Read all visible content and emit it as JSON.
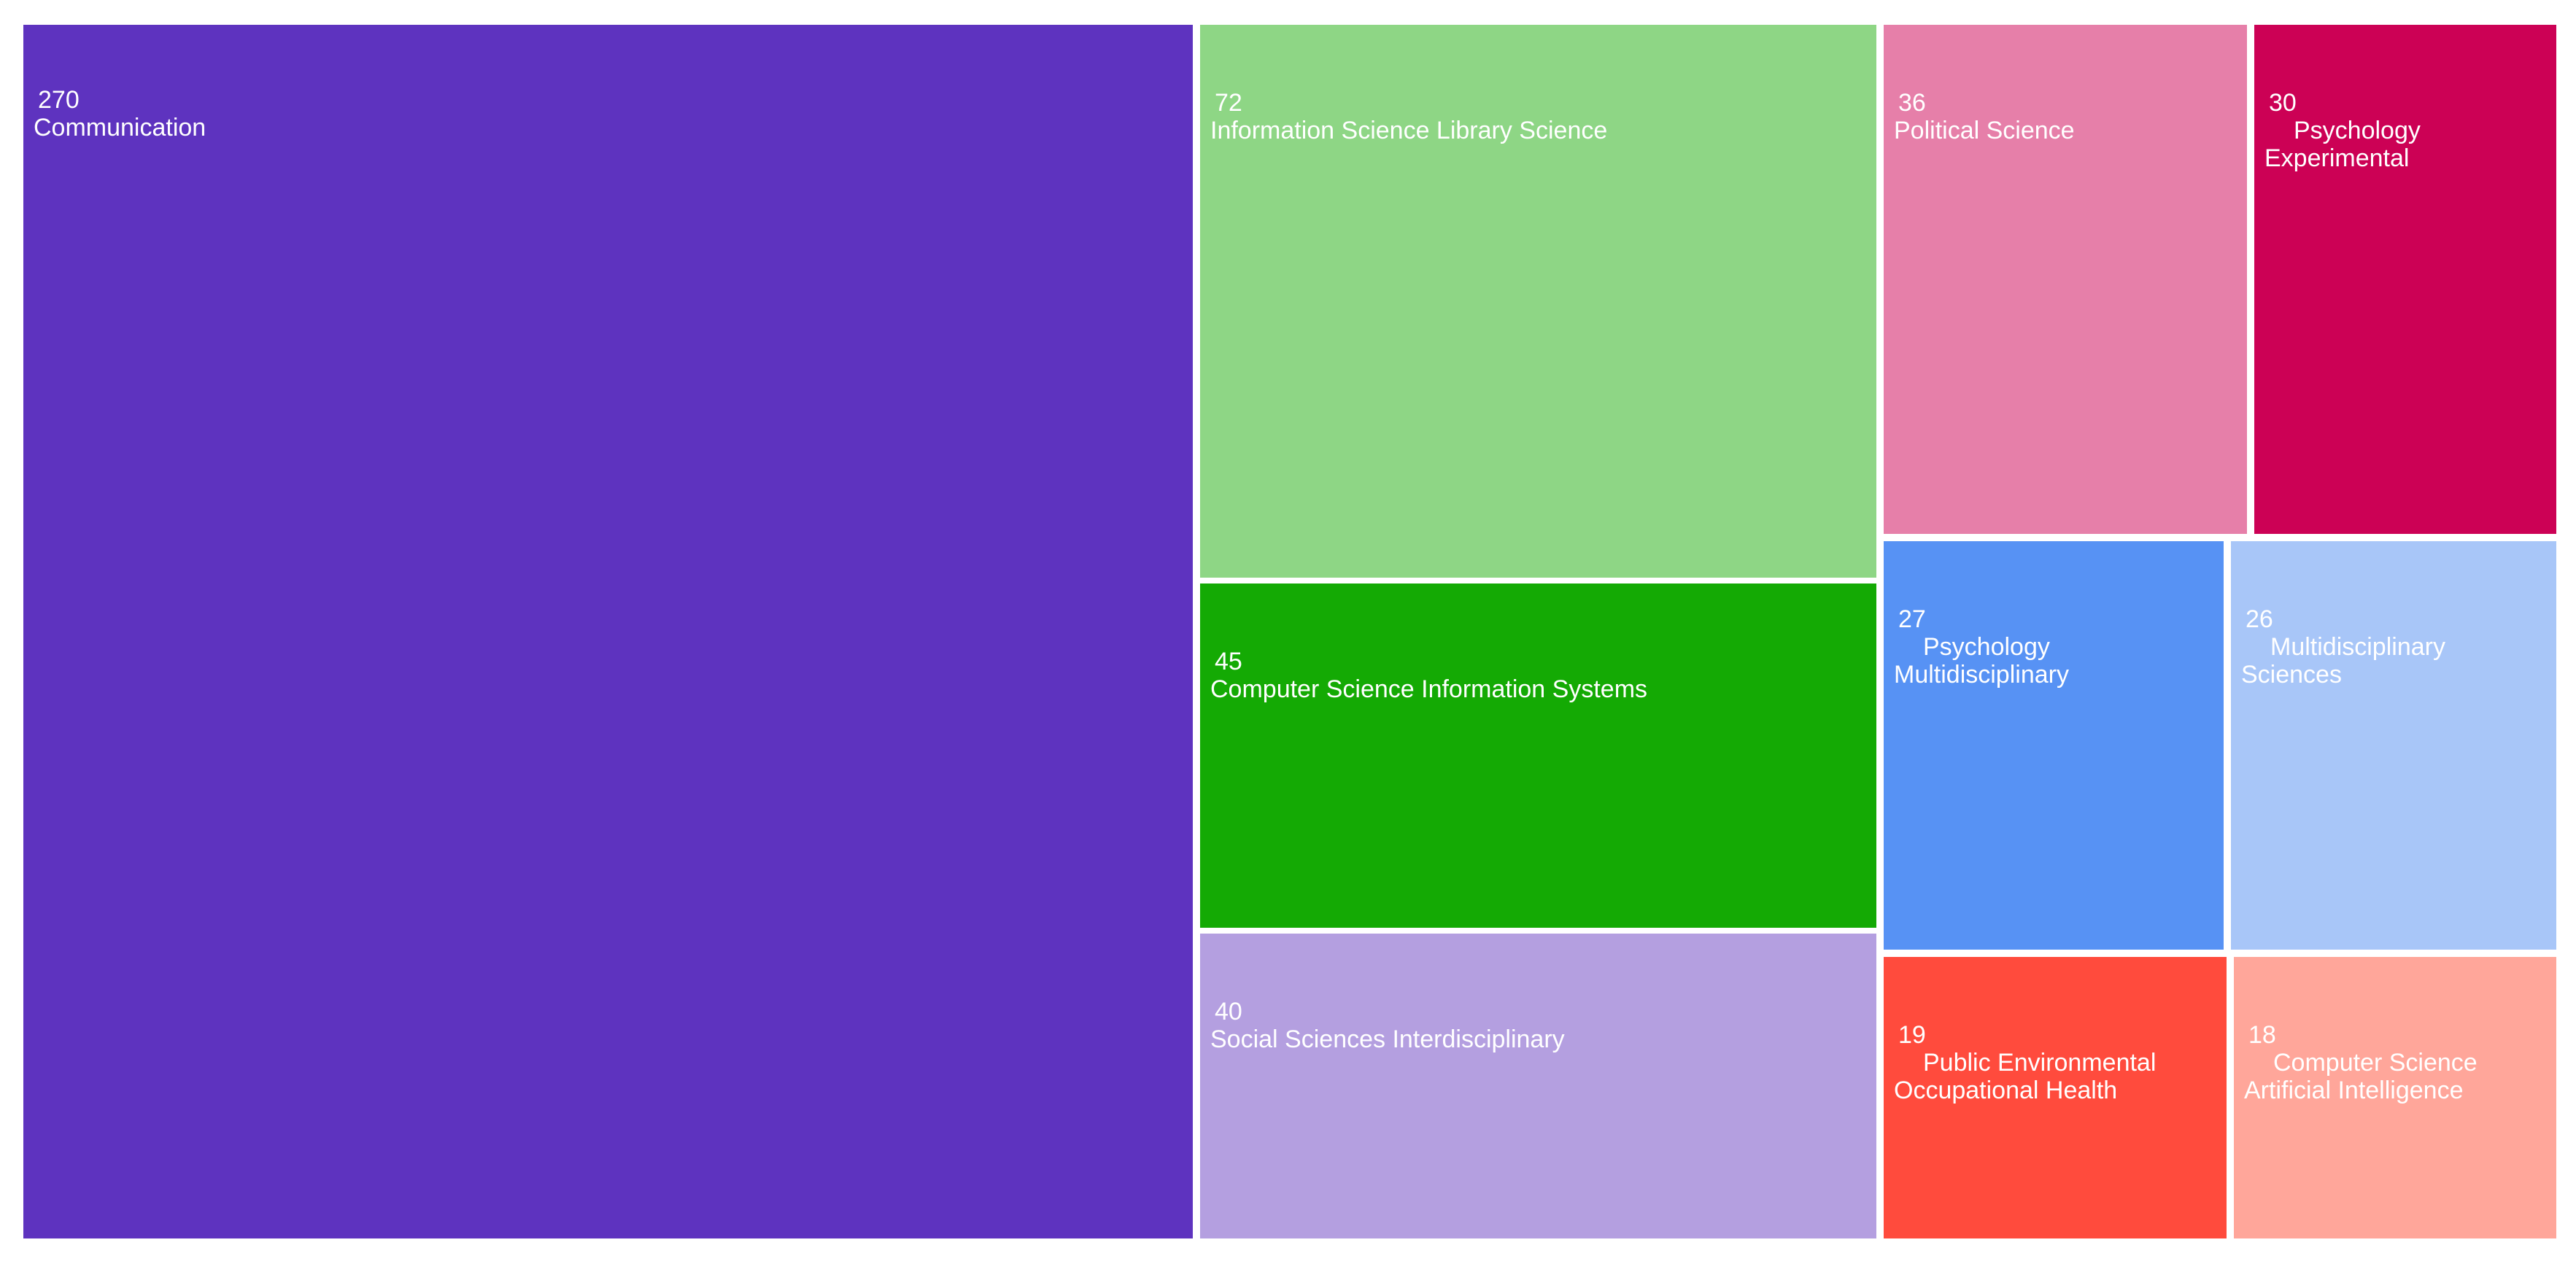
{
  "chart_data": {
    "type": "treemap",
    "title": "",
    "items": [
      {
        "label": "Communication",
        "value": 270,
        "color": "#5e33bf"
      },
      {
        "label": "Information Science Library Science",
        "value": 72,
        "color": "#8ed685"
      },
      {
        "label": "Computer Science Information Systems",
        "value": 45,
        "color": "#14aa04"
      },
      {
        "label": "Social Sciences Interdisciplinary",
        "value": 40,
        "color": "#b49fe0"
      },
      {
        "label": "Political Science",
        "value": 36,
        "color": "#e67fa9"
      },
      {
        "label": "Psychology Experimental",
        "value": 30,
        "color": "#cc0155"
      },
      {
        "label": "Psychology Multidisciplinary",
        "value": 27,
        "color": "#5792f4"
      },
      {
        "label": "Multidisciplinary Sciences",
        "value": 26,
        "color": "#a8c6f8"
      },
      {
        "label": "Public Environmental Occupational Health",
        "value": 19,
        "color": "#ff4b3d"
      },
      {
        "label": "Computer Science Artificial Intelligence",
        "value": 18,
        "color": "#ffa69a"
      }
    ]
  }
}
